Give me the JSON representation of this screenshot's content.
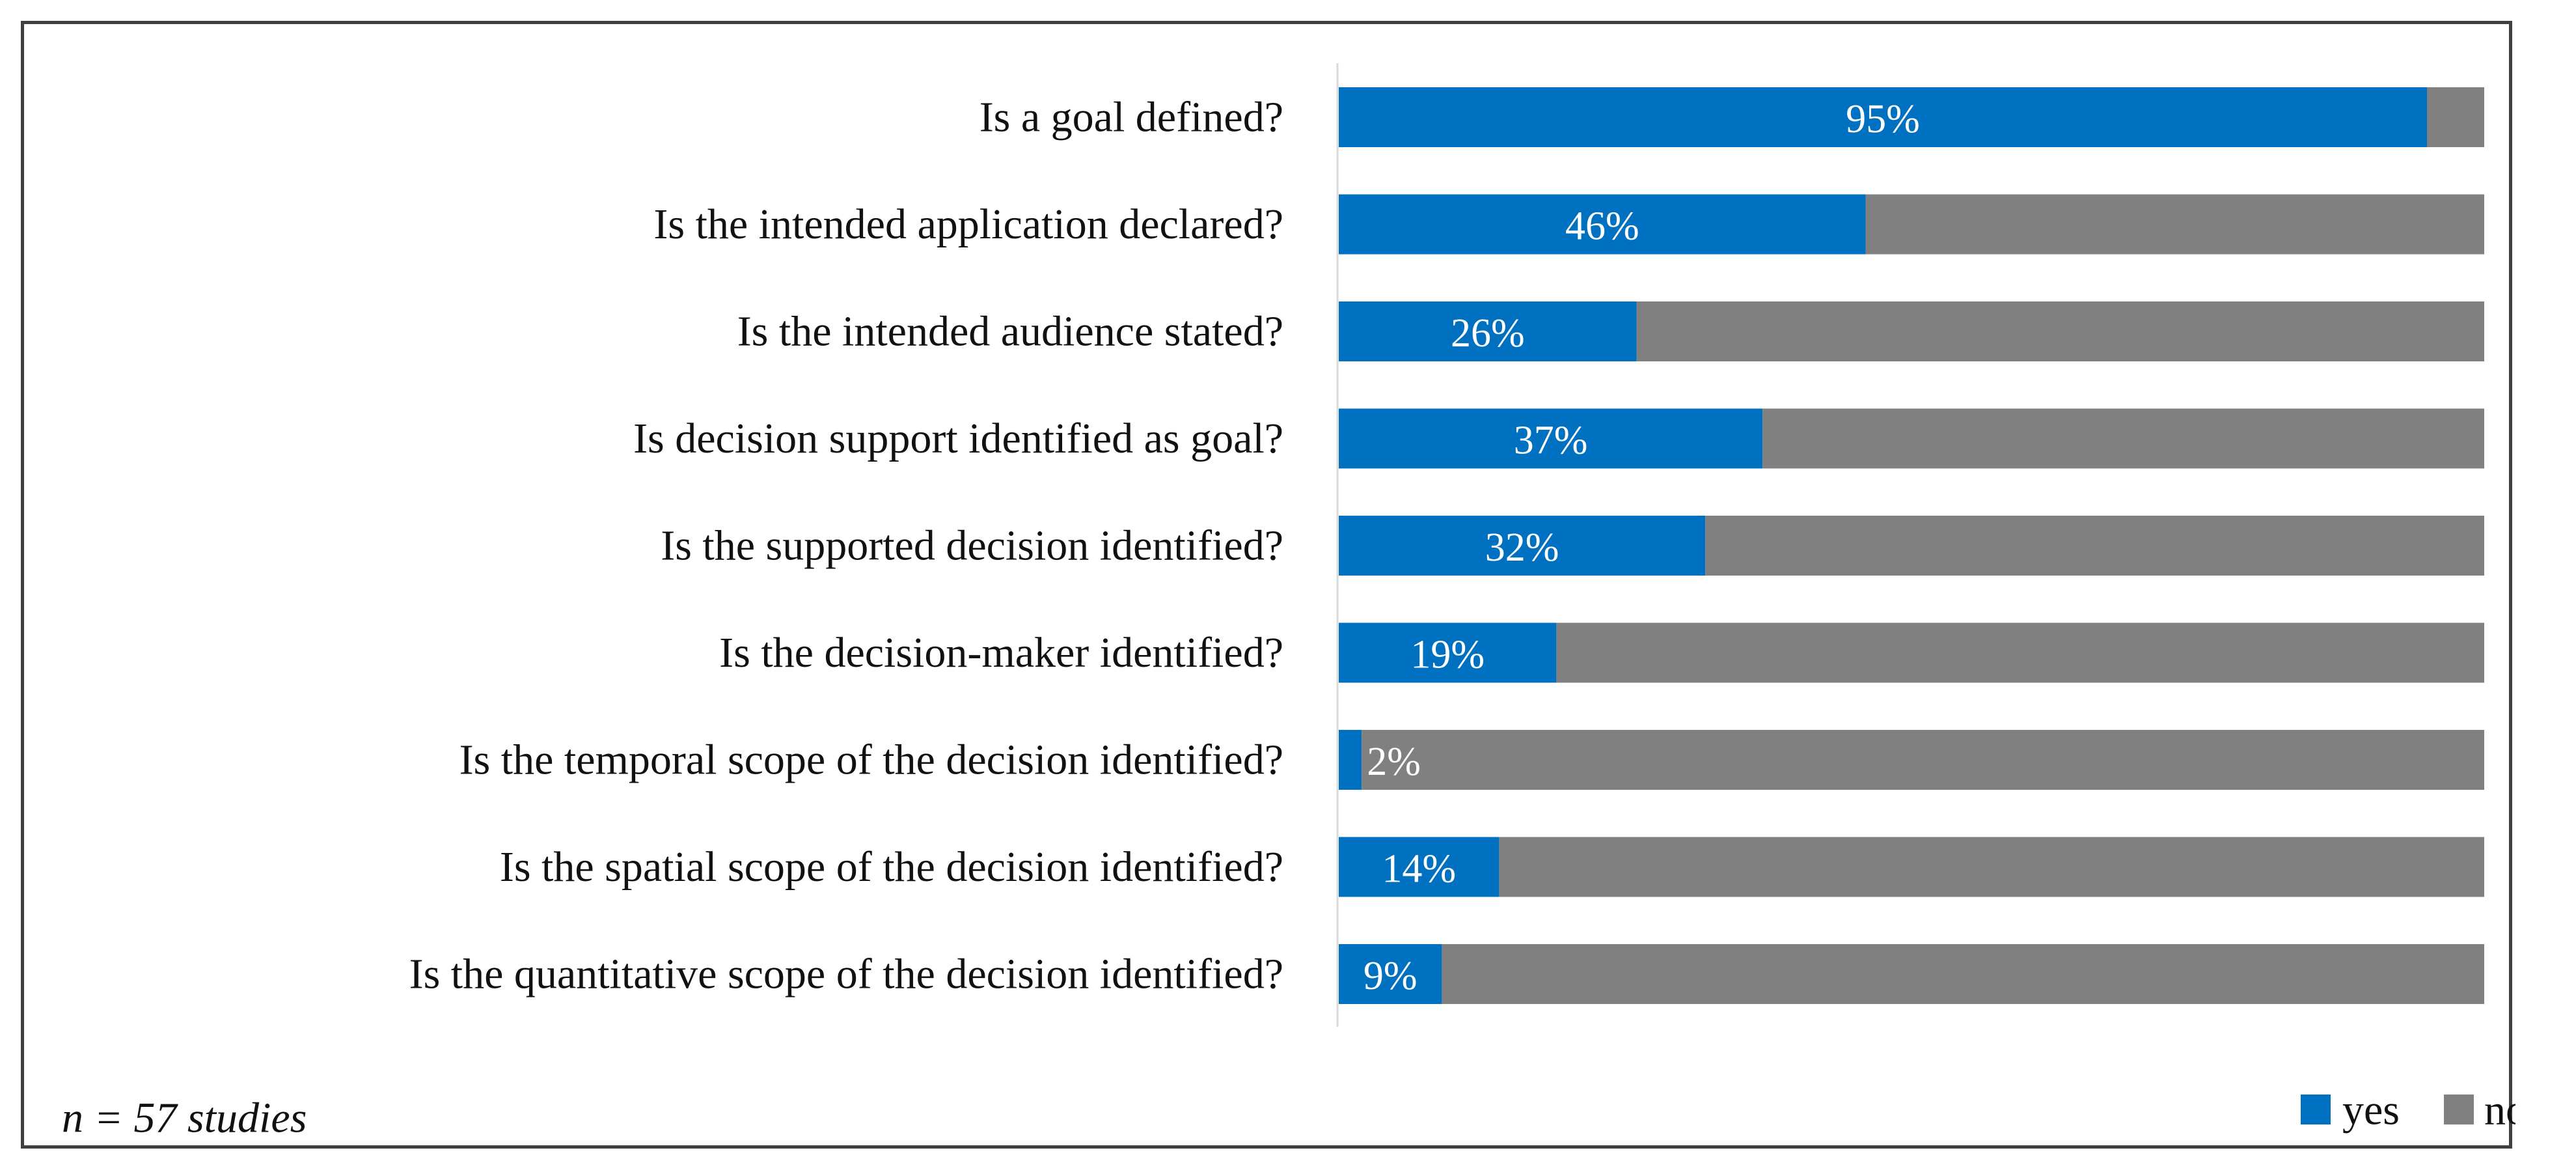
{
  "chart_data": {
    "type": "bar",
    "orientation": "horizontal",
    "stacked": true,
    "percent_scale": true,
    "categories": [
      "Is a goal defined?",
      "Is the intended application declared?",
      "Is the intended audience stated?",
      "Is decision support identified as goal?",
      "Is the supported decision identified?",
      "Is the decision-maker identified?",
      "Is the temporal scope of the decision identified?",
      "Is the spatial scope of the decision identified?",
      "Is the quantitative scope of the decision identified?"
    ],
    "series": [
      {
        "name": "yes",
        "values": [
          95,
          46,
          26,
          37,
          32,
          19,
          2,
          14,
          9
        ],
        "color": "#0070C0"
      },
      {
        "name": "no",
        "values": [
          5,
          54,
          74,
          63,
          68,
          81,
          98,
          86,
          91
        ],
        "color": "#808080"
      }
    ],
    "data_labels": [
      "95%",
      "46%",
      "26%",
      "37%",
      "32%",
      "19%",
      "2%",
      "14%",
      "9%"
    ],
    "xlim": [
      0,
      100
    ],
    "grid": false,
    "legend_position": "bottom-right",
    "title": "",
    "xlabel": "",
    "ylabel": "",
    "annotation": "n = 57 studies"
  }
}
